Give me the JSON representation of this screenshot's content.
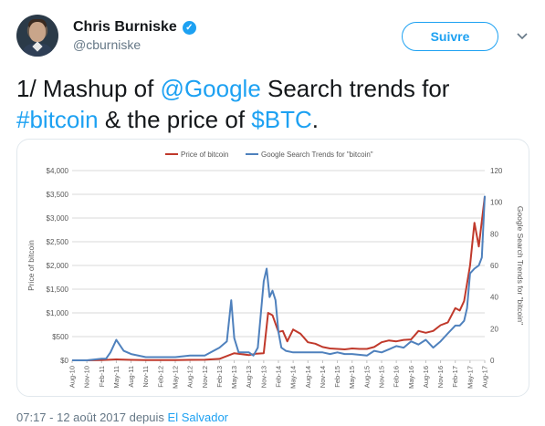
{
  "author": {
    "display_name": "Chris Burniske",
    "handle": "@cburniske",
    "verified_icon": "check-icon"
  },
  "actions": {
    "follow_label": "Suivre",
    "menu_icon": "chevron-down-icon"
  },
  "tweet": {
    "prefix": "1/ Mashup of ",
    "mention": "@Google",
    "middle": " Search trends for ",
    "hashtag": "#bitcoin",
    "and": " & the price of ",
    "cashtag": "$BTC",
    "suffix": "."
  },
  "footer": {
    "time_and_source": "07:17 - 12 août 2017 depuis ",
    "location": "El Salvador"
  },
  "colors": {
    "accent": "#1da1f2",
    "price_series": "#c0392b",
    "search_series": "#4f81bd"
  },
  "chart_data": {
    "type": "line",
    "title": "",
    "legend": [
      "Price of bitcoin",
      "Google Search Trends for \"bitcoin\""
    ],
    "legend_position": "top-center",
    "ylabel": "Price of bitcoin",
    "y2label": "Google Search Trends for \"bitcoin\"",
    "ylim": [
      0,
      4000
    ],
    "y2lim": [
      0,
      120
    ],
    "yticks": [
      "$0",
      "$500",
      "$1,000",
      "$1,500",
      "$2,000",
      "$2,500",
      "$3,000",
      "$3,500",
      "$4,000"
    ],
    "y2ticks": [
      "0",
      "20",
      "40",
      "60",
      "80",
      "100",
      "120"
    ],
    "xticks": [
      "Aug-10",
      "Nov-10",
      "Feb-11",
      "May-11",
      "Aug-11",
      "Nov-11",
      "Feb-12",
      "May-12",
      "Aug-12",
      "Nov-12",
      "Feb-13",
      "May-13",
      "Aug-13",
      "Nov-13",
      "Feb-14",
      "May-14",
      "Aug-14",
      "Nov-14",
      "Feb-15",
      "May-15",
      "Aug-15",
      "Nov-15",
      "Feb-16",
      "May-16",
      "Aug-16",
      "Nov-16",
      "Feb-17",
      "May-17",
      "Aug-17"
    ],
    "grid": "horizontal",
    "series": [
      {
        "name": "Price of bitcoin",
        "axis": "left",
        "x": [
          0,
          1,
          2,
          3,
          4,
          5,
          6,
          7,
          8,
          9,
          10,
          11,
          12,
          12.5,
          13,
          13.3,
          13.6,
          14,
          14.3,
          14.6,
          15,
          15.5,
          16,
          16.5,
          17,
          17.5,
          18,
          18.5,
          19,
          19.5,
          20,
          20.5,
          21,
          21.5,
          22,
          22.5,
          23,
          23.5,
          24,
          24.5,
          25,
          25.5,
          26,
          26.3,
          26.6,
          27,
          27.3,
          27.6,
          28
        ],
        "values": [
          0,
          0,
          5,
          20,
          10,
          5,
          5,
          5,
          10,
          12,
          30,
          150,
          110,
          140,
          150,
          1000,
          950,
          600,
          620,
          400,
          650,
          560,
          380,
          350,
          280,
          250,
          240,
          230,
          250,
          240,
          240,
          280,
          380,
          420,
          400,
          430,
          440,
          620,
          580,
          620,
          740,
          800,
          1100,
          1050,
          1250,
          2000,
          2900,
          2400,
          3450
        ]
      },
      {
        "name": "Google Search Trends for \"bitcoin\"",
        "axis": "right",
        "x": [
          0,
          1,
          2,
          2.3,
          2.6,
          3,
          3.5,
          4,
          5,
          6,
          7,
          8,
          9,
          10,
          10.5,
          10.8,
          11,
          11.3,
          12,
          12.3,
          12.6,
          13,
          13.2,
          13.4,
          13.6,
          13.8,
          14,
          14.2,
          14.5,
          15,
          16,
          17,
          17.5,
          18,
          18.5,
          19,
          20,
          20.5,
          21,
          21.5,
          22,
          22.5,
          23,
          23.5,
          24,
          24.5,
          25,
          25.5,
          26,
          26.3,
          26.6,
          26.8,
          27,
          27.3,
          27.6,
          27.8,
          28
        ],
        "values": [
          0,
          0,
          1,
          1,
          5,
          13,
          6,
          4,
          2,
          2,
          2,
          3,
          3,
          8,
          12,
          38,
          14,
          5,
          5,
          3,
          8,
          50,
          58,
          40,
          44,
          38,
          18,
          8,
          6,
          5,
          5,
          5,
          4,
          5,
          4,
          4,
          3,
          6,
          5,
          7,
          9,
          8,
          12,
          10,
          13,
          8,
          12,
          17,
          22,
          22,
          25,
          33,
          55,
          58,
          60,
          65,
          104
        ]
      }
    ]
  }
}
